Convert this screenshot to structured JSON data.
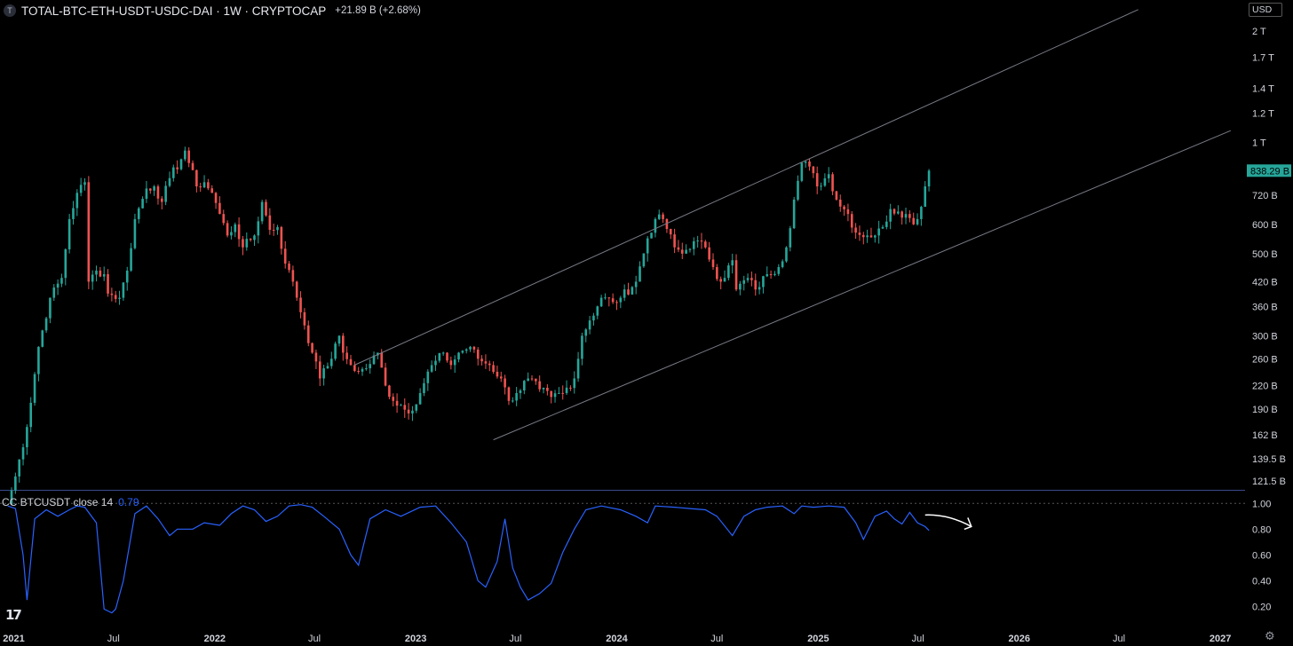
{
  "header": {
    "symbol_icon": "T",
    "title": "TOTAL-BTC-ETH-USDT-USDC-DAI · 1W · CRYPTOCAP",
    "change": "+21.89 B (+2.68%)"
  },
  "currency_label": "USD",
  "price_axis_labels": [
    {
      "label": "2 T",
      "value": 2000
    },
    {
      "label": "1.7 T",
      "value": 1700
    },
    {
      "label": "1.4 T",
      "value": 1400
    },
    {
      "label": "1.2 T",
      "value": 1200
    },
    {
      "label": "1 T",
      "value": 1000
    },
    {
      "label": "720 B",
      "value": 720
    },
    {
      "label": "600 B",
      "value": 600
    },
    {
      "label": "500 B",
      "value": 500
    },
    {
      "label": "420 B",
      "value": 420
    },
    {
      "label": "360 B",
      "value": 360
    },
    {
      "label": "300 B",
      "value": 300
    },
    {
      "label": "260 B",
      "value": 260
    },
    {
      "label": "220 B",
      "value": 220
    },
    {
      "label": "190 B",
      "value": 190
    },
    {
      "label": "162 B",
      "value": 162
    },
    {
      "label": "139.5 B",
      "value": 139.5
    },
    {
      "label": "121.5 B",
      "value": 121.5
    }
  ],
  "last_price_label": "838.29 B",
  "indicator": {
    "name": "CC BTCUSDT close 14",
    "value": "0.79",
    "axis_labels": [
      {
        "label": "1.00",
        "value": 1.0
      },
      {
        "label": "0.80",
        "value": 0.8
      },
      {
        "label": "0.60",
        "value": 0.6
      },
      {
        "label": "0.40",
        "value": 0.4
      },
      {
        "label": "0.20",
        "value": 0.2
      }
    ]
  },
  "time_axis_labels": [
    {
      "label": "2021",
      "date": "2021-01-01"
    },
    {
      "label": "Jul",
      "date": "2021-07-01"
    },
    {
      "label": "2022",
      "date": "2022-01-01"
    },
    {
      "label": "Jul",
      "date": "2022-07-01"
    },
    {
      "label": "2023",
      "date": "2023-01-01"
    },
    {
      "label": "Jul",
      "date": "2023-07-01"
    },
    {
      "label": "2024",
      "date": "2024-01-01"
    },
    {
      "label": "Jul",
      "date": "2024-07-01"
    },
    {
      "label": "2025",
      "date": "2025-01-01"
    },
    {
      "label": "Jul",
      "date": "2025-07-01"
    },
    {
      "label": "2026",
      "date": "2026-01-01"
    },
    {
      "label": "Jul",
      "date": "2026-07-01"
    },
    {
      "label": "2027",
      "date": "2027-01-01"
    }
  ],
  "logo_text": "17",
  "colors": {
    "up": "#26a69a",
    "down": "#ef5350",
    "indicator_line": "#2962ff",
    "channel": "#787b86",
    "background": "#000000",
    "last_price_bg": "#26a69a"
  },
  "icons": {
    "settings": "gear-icon",
    "symbol": "symbol-icon"
  },
  "chart_data": {
    "type": "candlestick",
    "interval": "1W",
    "scale": "log",
    "y_unit": "USD billions",
    "ylim": [
      115,
      2100
    ],
    "xlim": [
      "2020-12-07",
      "2027-02-15"
    ],
    "anchors": [
      [
        "2020-12-21",
        105
      ],
      [
        "2021-01-04",
        125
      ],
      [
        "2021-01-25",
        170
      ],
      [
        "2021-02-15",
        280
      ],
      [
        "2021-03-08",
        380
      ],
      [
        "2021-03-29",
        430
      ],
      [
        "2021-04-12",
        620
      ],
      [
        "2021-04-26",
        730
      ],
      [
        "2021-05-10",
        780
      ],
      [
        "2021-05-17",
        420
      ],
      [
        "2021-05-31",
        450
      ],
      [
        "2021-06-14",
        440
      ],
      [
        "2021-06-21",
        390
      ],
      [
        "2021-07-12",
        380
      ],
      [
        "2021-07-26",
        450
      ],
      [
        "2021-08-09",
        620
      ],
      [
        "2021-08-30",
        750
      ],
      [
        "2021-09-13",
        760
      ],
      [
        "2021-09-27",
        690
      ],
      [
        "2021-10-11",
        800
      ],
      [
        "2021-11-01",
        900
      ],
      [
        "2021-11-08",
        950
      ],
      [
        "2021-11-29",
        760
      ],
      [
        "2021-12-13",
        780
      ],
      [
        "2021-12-27",
        730
      ],
      [
        "2022-01-10",
        640
      ],
      [
        "2022-01-24",
        560
      ],
      [
        "2022-02-07",
        600
      ],
      [
        "2022-02-21",
        520
      ],
      [
        "2022-03-14",
        560
      ],
      [
        "2022-03-28",
        690
      ],
      [
        "2022-04-11",
        580
      ],
      [
        "2022-04-25",
        590
      ],
      [
        "2022-05-09",
        470
      ],
      [
        "2022-05-23",
        420
      ],
      [
        "2022-06-13",
        320
      ],
      [
        "2022-06-27",
        270
      ],
      [
        "2022-07-11",
        230
      ],
      [
        "2022-07-18",
        245
      ],
      [
        "2022-08-01",
        260
      ],
      [
        "2022-08-15",
        300
      ],
      [
        "2022-08-22",
        270
      ],
      [
        "2022-09-05",
        250
      ],
      [
        "2022-09-19",
        240
      ],
      [
        "2022-10-03",
        245
      ],
      [
        "2022-10-24",
        270
      ],
      [
        "2022-11-07",
        220
      ],
      [
        "2022-11-21",
        200
      ],
      [
        "2022-12-05",
        195
      ],
      [
        "2022-12-19",
        185
      ],
      [
        "2023-01-09",
        210
      ],
      [
        "2023-01-23",
        240
      ],
      [
        "2023-02-20",
        270
      ],
      [
        "2023-03-06",
        250
      ],
      [
        "2023-03-20",
        270
      ],
      [
        "2023-04-10",
        280
      ],
      [
        "2023-04-24",
        260
      ],
      [
        "2023-05-15",
        250
      ],
      [
        "2023-06-05",
        230
      ],
      [
        "2023-06-19",
        200
      ],
      [
        "2023-07-03",
        210
      ],
      [
        "2023-07-24",
        230
      ],
      [
        "2023-08-14",
        215
      ],
      [
        "2023-09-04",
        205
      ],
      [
        "2023-09-25",
        210
      ],
      [
        "2023-10-16",
        230
      ],
      [
        "2023-10-30",
        300
      ],
      [
        "2023-11-13",
        330
      ],
      [
        "2023-12-04",
        380
      ],
      [
        "2023-12-25",
        370
      ],
      [
        "2024-01-08",
        380
      ],
      [
        "2024-02-05",
        420
      ],
      [
        "2024-02-26",
        550
      ],
      [
        "2024-03-11",
        620
      ],
      [
        "2024-03-25",
        620
      ],
      [
        "2024-04-15",
        520
      ],
      [
        "2024-04-29",
        500
      ],
      [
        "2024-05-20",
        540
      ],
      [
        "2024-06-10",
        520
      ],
      [
        "2024-06-24",
        460
      ],
      [
        "2024-07-08",
        420
      ],
      [
        "2024-07-29",
        480
      ],
      [
        "2024-08-05",
        400
      ],
      [
        "2024-08-26",
        430
      ],
      [
        "2024-09-09",
        400
      ],
      [
        "2024-09-30",
        440
      ],
      [
        "2024-10-21",
        460
      ],
      [
        "2024-11-04",
        520
      ],
      [
        "2024-11-18",
        700
      ],
      [
        "2024-12-02",
        880
      ],
      [
        "2024-12-16",
        860
      ],
      [
        "2024-12-30",
        760
      ],
      [
        "2025-01-20",
        820
      ],
      [
        "2025-02-03",
        700
      ],
      [
        "2025-02-24",
        640
      ],
      [
        "2025-03-10",
        570
      ],
      [
        "2025-03-31",
        560
      ],
      [
        "2025-04-14",
        560
      ],
      [
        "2025-04-28",
        590
      ],
      [
        "2025-05-12",
        660
      ],
      [
        "2025-05-26",
        650
      ],
      [
        "2025-06-09",
        640
      ],
      [
        "2025-06-23",
        600
      ],
      [
        "2025-06-30",
        620
      ],
      [
        "2025-07-14",
        760
      ],
      [
        "2025-07-21",
        838.29
      ]
    ],
    "last_value": 838.29,
    "channel_lines": [
      {
        "name": "upper",
        "points": [
          [
            "2022-09-12",
            250
          ],
          [
            "2024-11-25",
            905
          ],
          [
            "2026-07-06",
            2180
          ]
        ]
      },
      {
        "name": "lower",
        "points": [
          [
            "2023-05-22",
            157
          ],
          [
            "2024-08-26",
            330
          ],
          [
            "2026-12-21",
            1030
          ]
        ]
      }
    ],
    "indicator_series": {
      "name": "CC BTCUSDT close 14",
      "ylim": [
        0.1,
        1.05
      ],
      "anchors": [
        [
          "2020-12-21",
          0.98
        ],
        [
          "2021-01-04",
          0.96
        ],
        [
          "2021-01-18",
          0.6
        ],
        [
          "2021-01-25",
          0.25
        ],
        [
          "2021-02-08",
          0.88
        ],
        [
          "2021-03-01",
          0.95
        ],
        [
          "2021-03-22",
          0.9
        ],
        [
          "2021-04-12",
          0.95
        ],
        [
          "2021-04-26",
          0.98
        ],
        [
          "2021-05-10",
          0.97
        ],
        [
          "2021-05-31",
          0.85
        ],
        [
          "2021-06-14",
          0.18
        ],
        [
          "2021-06-28",
          0.15
        ],
        [
          "2021-07-05",
          0.18
        ],
        [
          "2021-07-19",
          0.4
        ],
        [
          "2021-08-09",
          0.92
        ],
        [
          "2021-08-30",
          0.98
        ],
        [
          "2021-09-20",
          0.88
        ],
        [
          "2021-10-11",
          0.75
        ],
        [
          "2021-10-25",
          0.8
        ],
        [
          "2021-11-22",
          0.8
        ],
        [
          "2021-12-13",
          0.85
        ],
        [
          "2022-01-10",
          0.83
        ],
        [
          "2022-01-31",
          0.92
        ],
        [
          "2022-02-21",
          0.98
        ],
        [
          "2022-03-14",
          0.95
        ],
        [
          "2022-04-04",
          0.86
        ],
        [
          "2022-04-25",
          0.9
        ],
        [
          "2022-05-16",
          0.98
        ],
        [
          "2022-06-06",
          0.99
        ],
        [
          "2022-06-27",
          0.97
        ],
        [
          "2022-07-18",
          0.9
        ],
        [
          "2022-08-15",
          0.8
        ],
        [
          "2022-09-05",
          0.6
        ],
        [
          "2022-09-19",
          0.52
        ],
        [
          "2022-10-10",
          0.88
        ],
        [
          "2022-11-07",
          0.95
        ],
        [
          "2022-12-05",
          0.9
        ],
        [
          "2023-01-09",
          0.97
        ],
        [
          "2023-02-06",
          0.98
        ],
        [
          "2023-03-06",
          0.85
        ],
        [
          "2023-04-03",
          0.7
        ],
        [
          "2023-04-24",
          0.4
        ],
        [
          "2023-05-08",
          0.35
        ],
        [
          "2023-05-29",
          0.55
        ],
        [
          "2023-06-12",
          0.88
        ],
        [
          "2023-06-26",
          0.5
        ],
        [
          "2023-07-10",
          0.35
        ],
        [
          "2023-07-24",
          0.25
        ],
        [
          "2023-08-14",
          0.3
        ],
        [
          "2023-09-04",
          0.38
        ],
        [
          "2023-09-25",
          0.62
        ],
        [
          "2023-10-16",
          0.8
        ],
        [
          "2023-11-06",
          0.95
        ],
        [
          "2023-12-04",
          0.98
        ],
        [
          "2024-01-08",
          0.95
        ],
        [
          "2024-02-05",
          0.9
        ],
        [
          "2024-02-26",
          0.85
        ],
        [
          "2024-03-11",
          0.98
        ],
        [
          "2024-04-15",
          0.97
        ],
        [
          "2024-05-13",
          0.96
        ],
        [
          "2024-06-10",
          0.95
        ],
        [
          "2024-07-01",
          0.9
        ],
        [
          "2024-07-29",
          0.75
        ],
        [
          "2024-08-19",
          0.9
        ],
        [
          "2024-09-09",
          0.95
        ],
        [
          "2024-09-30",
          0.97
        ],
        [
          "2024-10-28",
          0.98
        ],
        [
          "2024-11-18",
          0.92
        ],
        [
          "2024-12-02",
          0.98
        ],
        [
          "2024-12-23",
          0.97
        ],
        [
          "2025-01-20",
          0.98
        ],
        [
          "2025-02-17",
          0.97
        ],
        [
          "2025-03-10",
          0.85
        ],
        [
          "2025-03-24",
          0.72
        ],
        [
          "2025-04-14",
          0.9
        ],
        [
          "2025-05-05",
          0.94
        ],
        [
          "2025-05-19",
          0.88
        ],
        [
          "2025-06-02",
          0.84
        ],
        [
          "2025-06-16",
          0.93
        ],
        [
          "2025-06-30",
          0.85
        ],
        [
          "2025-07-14",
          0.82
        ],
        [
          "2025-07-21",
          0.79
        ]
      ]
    },
    "annotation_arrow": {
      "name": "hand-drawn arrow",
      "points": [
        [
          "2025-07-14",
          0.91
        ],
        [
          "2025-08-25",
          0.89
        ],
        [
          "2025-10-06",
          0.82
        ]
      ]
    }
  }
}
